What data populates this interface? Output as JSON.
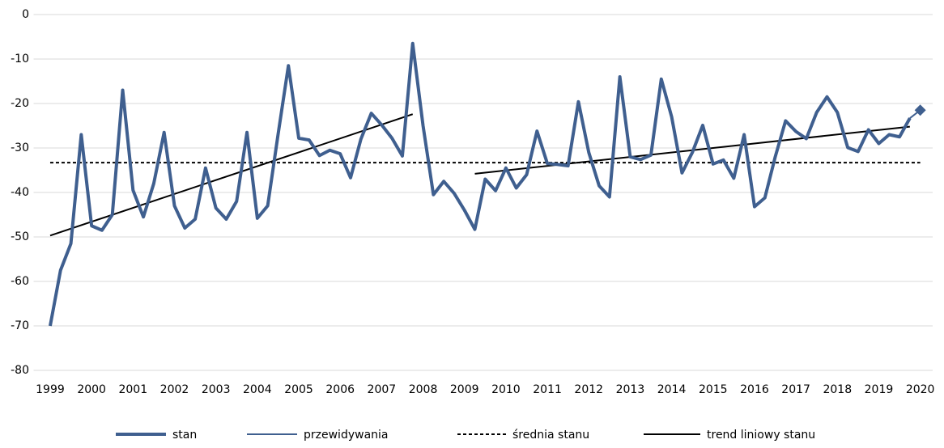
{
  "chart_data": {
    "type": "line",
    "x": [
      1999,
      1999.25,
      1999.5,
      1999.75,
      2000,
      2000.25,
      2000.5,
      2000.75,
      2001,
      2001.25,
      2001.5,
      2001.75,
      2002,
      2002.25,
      2002.5,
      2002.75,
      2003,
      2003.25,
      2003.5,
      2003.75,
      2004,
      2004.25,
      2004.5,
      2004.75,
      2005,
      2005.25,
      2005.5,
      2005.75,
      2006,
      2006.25,
      2006.5,
      2006.75,
      2007,
      2007.25,
      2007.5,
      2007.75,
      2008,
      2008.25,
      2008.5,
      2008.75,
      2009,
      2009.25,
      2009.5,
      2009.75,
      2010,
      2010.25,
      2010.5,
      2010.75,
      2011,
      2011.25,
      2011.5,
      2011.75,
      2012,
      2012.25,
      2012.5,
      2012.75,
      2013,
      2013.25,
      2013.5,
      2013.75,
      2014,
      2014.25,
      2014.5,
      2014.75,
      2015,
      2015.25,
      2015.5,
      2015.75,
      2016,
      2016.25,
      2016.5,
      2016.75,
      2017,
      2017.25,
      2017.5,
      2017.75,
      2018,
      2018.25,
      2018.5,
      2018.75,
      2019,
      2019.25,
      2019.5,
      2019.75,
      2020
    ],
    "series": [
      {
        "name": "stan",
        "color": "#3f5f8f",
        "width": 4,
        "values": [
          -70,
          -57.5,
          -51.5,
          -27,
          -47.5,
          -48.5,
          -45,
          -17,
          -39.5,
          -45.5,
          -38,
          -26.5,
          -43,
          -48,
          -46,
          -34.5,
          -43.5,
          -46,
          -42,
          -26.5,
          -45.8,
          -43,
          -27,
          -11.5,
          -27.8,
          -28.2,
          -31.7,
          -30.5,
          -31.3,
          -36.7,
          -28,
          -22.2,
          -24.8,
          -27.8,
          -31.8,
          -6.5,
          -25,
          -40.5,
          -37.5,
          -40.2,
          -44,
          -48.3,
          -37,
          -39.6,
          -34.5,
          -39,
          -36,
          -26.2,
          -33.5,
          -33.7,
          -34,
          -19.6,
          -31,
          -38.5,
          -41,
          -14,
          -32,
          -32.6,
          -31.6,
          -14.5,
          -23,
          -35.6,
          -31,
          -24.9,
          -33.6,
          -32.7,
          -36.8,
          -27,
          -43.2,
          -41.2,
          -32,
          -23.9,
          -26.3,
          -27.9,
          -22,
          -18.5,
          -22,
          -29.9,
          -30.8,
          -25.9,
          -29,
          -27,
          -27.5,
          -23.3,
          null
        ]
      },
      {
        "name": "przewidywania",
        "color": "#3f5f8f",
        "width": 2,
        "marker": "diamond",
        "values": [
          null,
          null,
          null,
          null,
          null,
          null,
          null,
          null,
          null,
          null,
          null,
          null,
          null,
          null,
          null,
          null,
          null,
          null,
          null,
          null,
          null,
          null,
          null,
          null,
          null,
          null,
          null,
          null,
          null,
          null,
          null,
          null,
          null,
          null,
          null,
          null,
          null,
          null,
          null,
          null,
          null,
          null,
          null,
          null,
          null,
          null,
          null,
          null,
          null,
          null,
          null,
          null,
          null,
          null,
          null,
          null,
          null,
          null,
          null,
          null,
          null,
          null,
          null,
          null,
          null,
          null,
          null,
          null,
          null,
          null,
          null,
          null,
          null,
          null,
          null,
          null,
          null,
          null,
          null,
          null,
          null,
          null,
          null,
          -23.3,
          -21.5
        ]
      }
    ],
    "mean": {
      "name": "średnia stanu",
      "color": "#000000",
      "value": -33.3
    },
    "trend": {
      "name": "trend liniowy stanu",
      "color": "#000000",
      "segments": [
        {
          "x": [
            1999,
            2007.75
          ],
          "values": [
            -49.7,
            -22.4
          ]
        },
        {
          "x": [
            2009.25,
            2019.75
          ],
          "values": [
            -35.8,
            -25.2
          ]
        }
      ]
    },
    "xlim": [
      1998.6,
      2020.3
    ],
    "xticks": [
      1999,
      2000,
      2001,
      2002,
      2003,
      2004,
      2005,
      2006,
      2007,
      2008,
      2009,
      2010,
      2011,
      2012,
      2013,
      2014,
      2015,
      2016,
      2017,
      2018,
      2019,
      2020
    ],
    "ylim": [
      -80,
      0
    ],
    "yticks": [
      0,
      -10,
      -20,
      -30,
      -40,
      -50,
      -60,
      -70,
      -80
    ],
    "grid": true,
    "legend": "bottom"
  }
}
